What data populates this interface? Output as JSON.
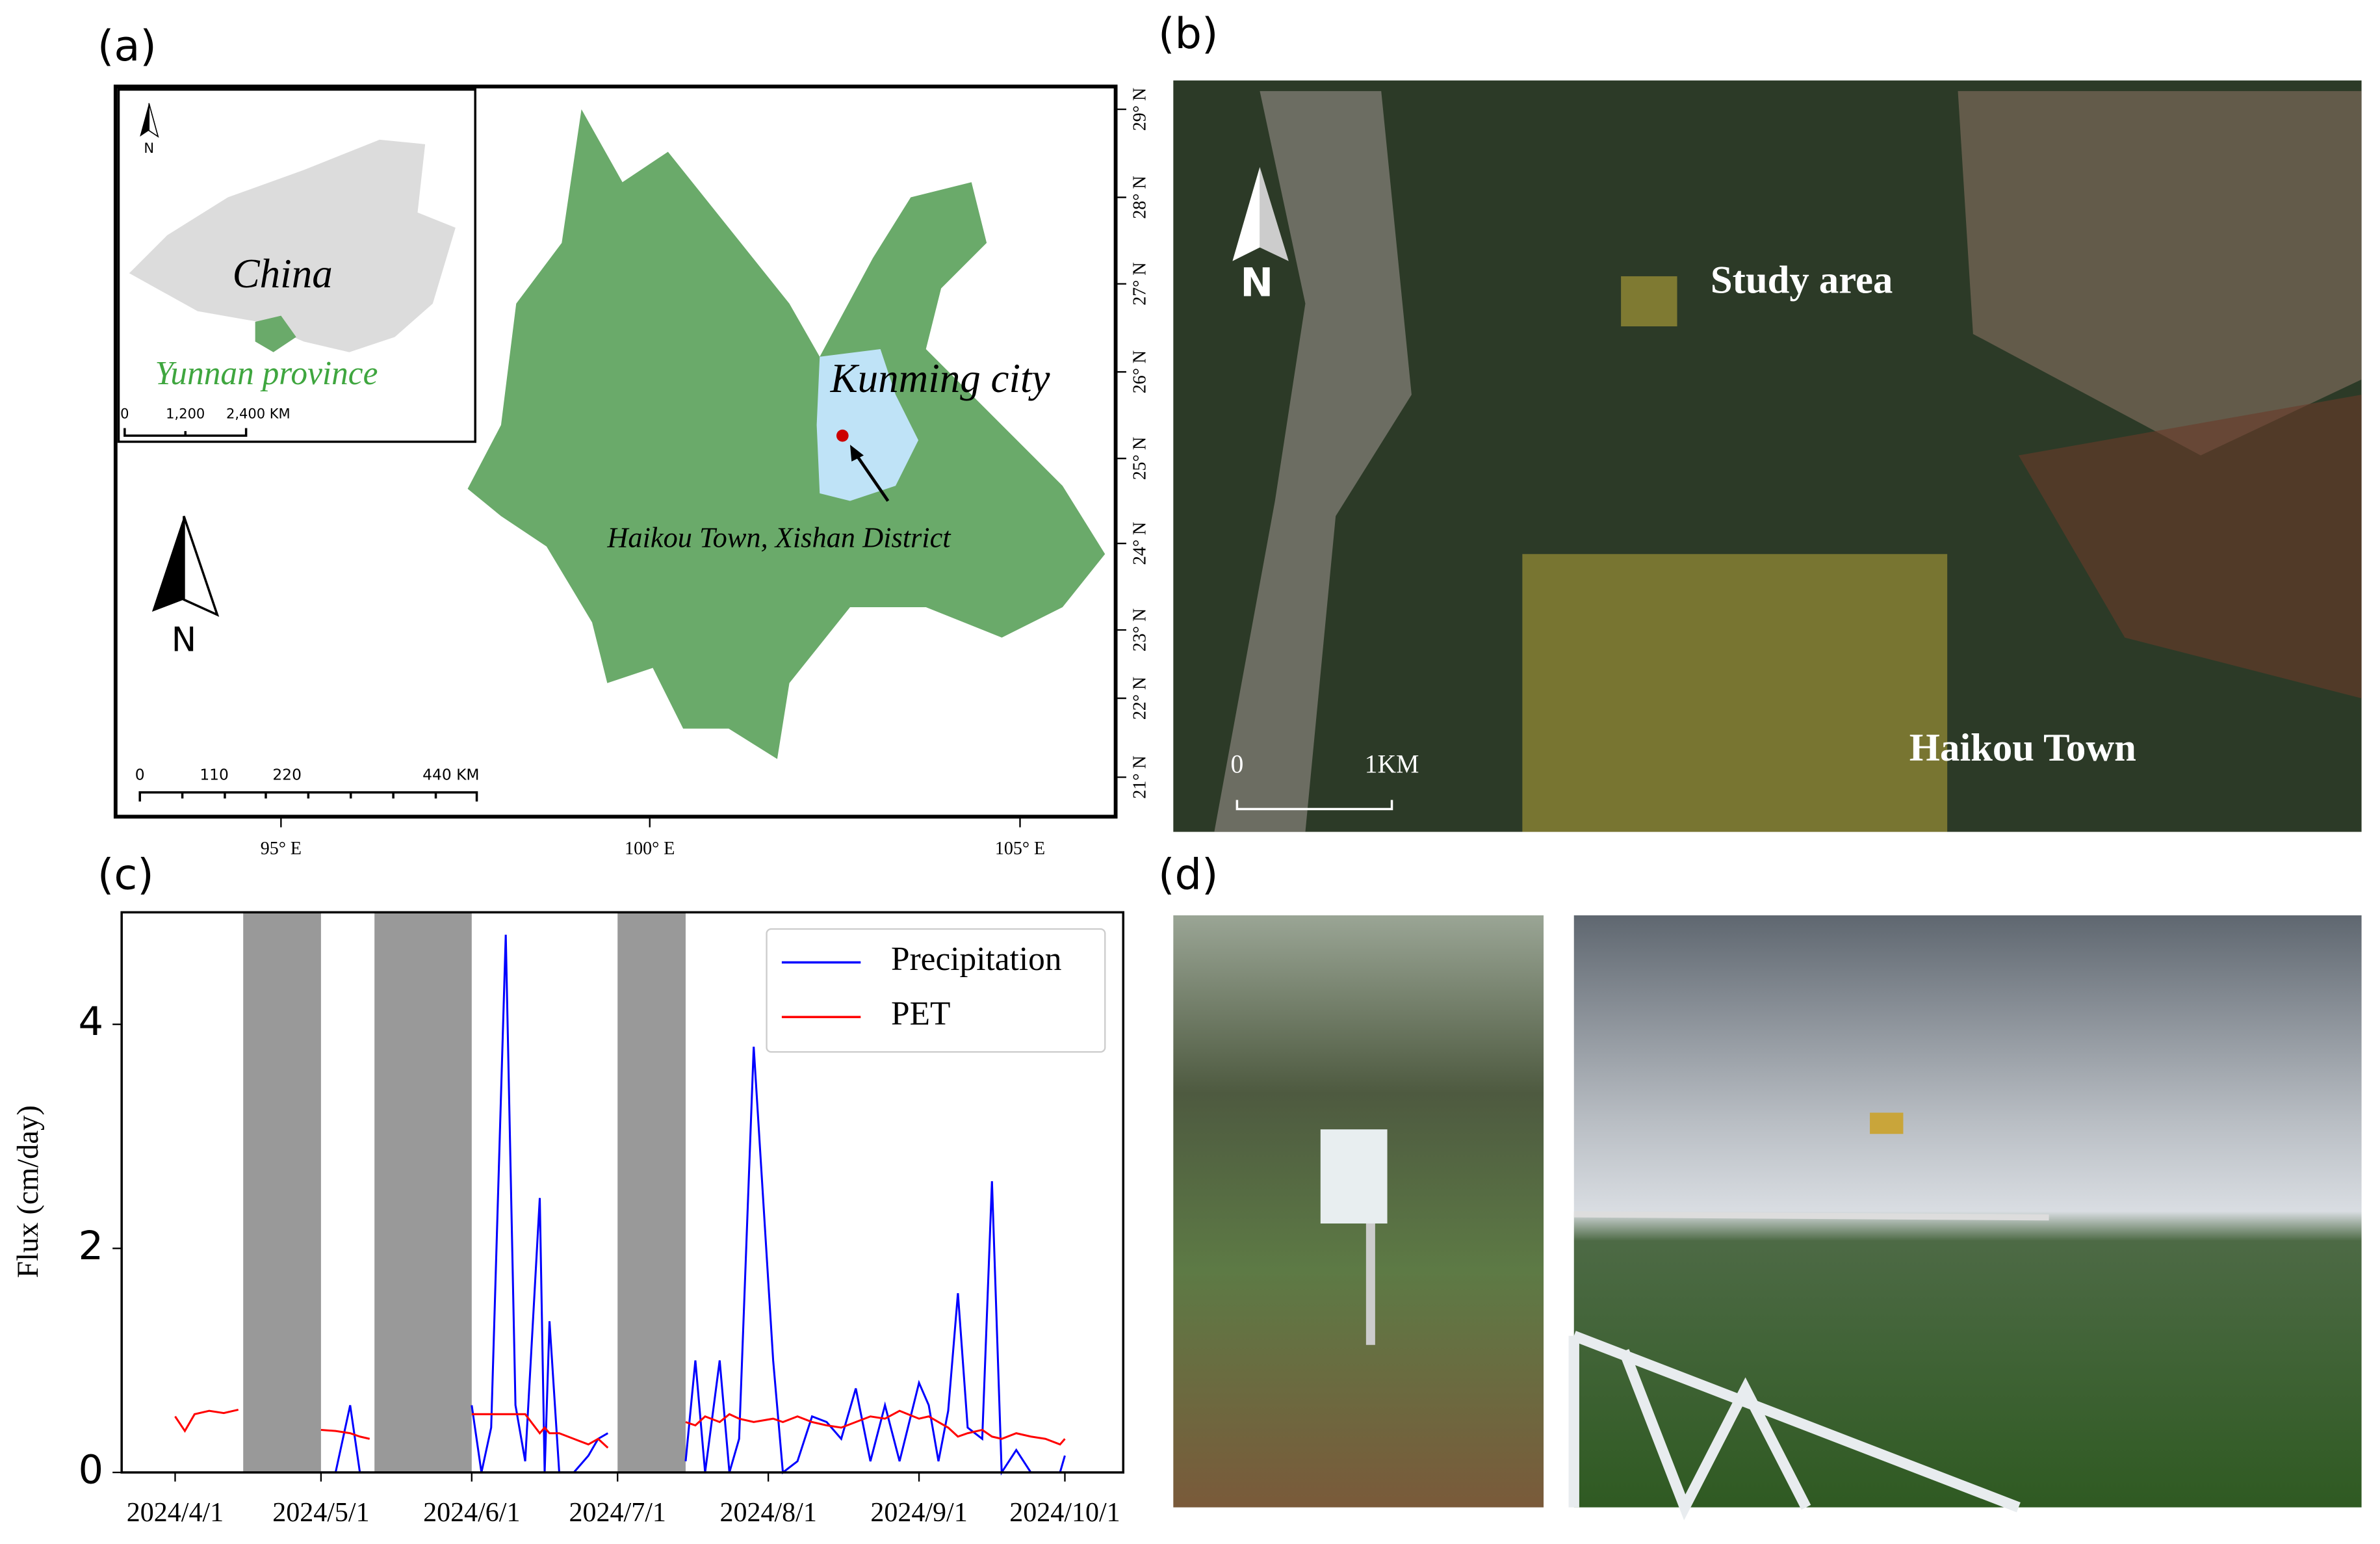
{
  "panels": {
    "a": {
      "label": "(a)",
      "inset": {
        "country": "China",
        "province": "Yunnan province",
        "north": "N",
        "scale_labels": [
          "0",
          "1,200",
          "2,400 KM"
        ]
      },
      "city": "Kunming city",
      "site": "Haikou Town, Xishan District",
      "north": "N",
      "scale_labels": [
        "0",
        "110",
        "220",
        "440 KM"
      ],
      "lat_labels": [
        "29° N",
        "28° N",
        "27° N",
        "26° N",
        "25° N",
        "24° N",
        "23° N",
        "22° N",
        "21° N"
      ],
      "lon_labels": [
        "95° E",
        "100° E",
        "105° E"
      ]
    },
    "b": {
      "label": "(b)",
      "north": "N",
      "study_area": "Study area",
      "town": "Haikou Town",
      "scale_labels": [
        "0",
        "1KM"
      ]
    },
    "c": {
      "label": "(c)"
    },
    "d": {
      "label": "(d)"
    }
  },
  "chart_data": {
    "type": "line",
    "ylabel": "Flux (cm/day)",
    "x": [
      "2024/4/1",
      "2024/4/3",
      "2024/4/5",
      "2024/4/8",
      "2024/4/11",
      "2024/4/14",
      "2024/4/15",
      "2024/5/1",
      "2024/5/4",
      "2024/5/7",
      "2024/5/9",
      "2024/5/11",
      "2024/5/12",
      "2024/6/1",
      "2024/6/3",
      "2024/6/5",
      "2024/6/8",
      "2024/6/10",
      "2024/6/12",
      "2024/6/15",
      "2024/6/16",
      "2024/6/17",
      "2024/6/19",
      "2024/6/22",
      "2024/6/25",
      "2024/6/27",
      "2024/6/29",
      "2024/7/1",
      "2024/7/15",
      "2024/7/17",
      "2024/7/19",
      "2024/7/22",
      "2024/7/24",
      "2024/7/26",
      "2024/7/29",
      "2024/8/2",
      "2024/8/4",
      "2024/8/7",
      "2024/8/10",
      "2024/8/13",
      "2024/8/16",
      "2024/8/19",
      "2024/8/22",
      "2024/8/25",
      "2024/8/28",
      "2024/9/1",
      "2024/9/3",
      "2024/9/5",
      "2024/9/7",
      "2024/9/9",
      "2024/9/11",
      "2024/9/14",
      "2024/9/16",
      "2024/9/18",
      "2024/9/21",
      "2024/9/24",
      "2024/9/27",
      "2024/9/30",
      "2024/10/1"
    ],
    "series": [
      {
        "name": "Precipitation",
        "color": "#0000ff",
        "values": [
          null,
          null,
          null,
          null,
          null,
          null,
          null,
          0,
          0,
          0.6,
          0,
          0,
          null,
          0.6,
          0,
          0.4,
          4.8,
          0.6,
          0.1,
          2.45,
          0,
          1.35,
          0,
          0,
          0.15,
          0.3,
          0.35,
          null,
          0.1,
          1.0,
          0,
          1.0,
          0,
          0.3,
          3.8,
          1.0,
          0,
          0.1,
          0.5,
          0.45,
          0.3,
          0.75,
          0.1,
          0.6,
          0.1,
          0.8,
          0.6,
          0.1,
          0.55,
          1.6,
          0.4,
          0.3,
          2.6,
          0,
          0.2,
          0,
          0,
          0,
          0.15
        ]
      },
      {
        "name": "PET",
        "color": "#ff0000",
        "values": [
          0.5,
          0.37,
          0.52,
          0.55,
          0.53,
          0.56,
          null,
          0.38,
          0.37,
          0.35,
          0.32,
          0.3,
          null,
          0.52,
          0.52,
          0.52,
          0.52,
          0.52,
          0.52,
          0.35,
          0.4,
          0.35,
          0.35,
          0.3,
          0.25,
          0.3,
          0.22,
          null,
          0.45,
          0.42,
          0.5,
          0.45,
          0.52,
          0.48,
          0.45,
          0.48,
          0.45,
          0.5,
          0.45,
          0.42,
          0.4,
          0.45,
          0.5,
          0.48,
          0.55,
          0.48,
          0.5,
          0.45,
          0.4,
          0.32,
          0.35,
          0.38,
          0.32,
          0.3,
          0.35,
          0.32,
          0.3,
          0.25,
          0.3
        ]
      }
    ],
    "shaded_periods": [
      [
        "2024/4/15",
        "2024/5/1"
      ],
      [
        "2024/5/12",
        "2024/6/1"
      ],
      [
        "2024/7/1",
        "2024/7/15"
      ]
    ],
    "shade_color": "#999999",
    "xlim": [
      "2024/3/21",
      "2024/10/13"
    ],
    "xticks": [
      "2024/4/1",
      "2024/5/1",
      "2024/6/1",
      "2024/7/1",
      "2024/8/1",
      "2024/9/1",
      "2024/10/1"
    ],
    "ylim": [
      0,
      5
    ],
    "yticks": [
      0,
      2,
      4
    ],
    "legend": "upper right"
  }
}
